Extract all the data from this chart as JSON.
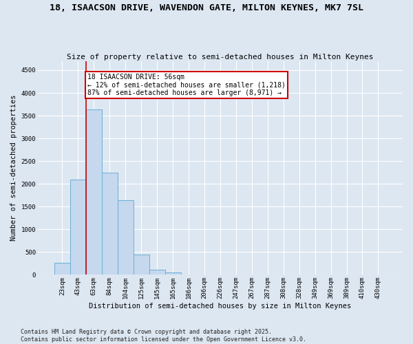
{
  "title": "18, ISAACSON DRIVE, WAVENDON GATE, MILTON KEYNES, MK7 7SL",
  "subtitle": "Size of property relative to semi-detached houses in Milton Keynes",
  "xlabel": "Distribution of semi-detached houses by size in Milton Keynes",
  "ylabel": "Number of semi-detached properties",
  "categories": [
    "23sqm",
    "43sqm",
    "63sqm",
    "84sqm",
    "104sqm",
    "125sqm",
    "145sqm",
    "165sqm",
    "186sqm",
    "206sqm",
    "226sqm",
    "247sqm",
    "267sqm",
    "287sqm",
    "308sqm",
    "328sqm",
    "349sqm",
    "369sqm",
    "389sqm",
    "410sqm",
    "430sqm"
  ],
  "values": [
    260,
    2100,
    3640,
    2250,
    1640,
    440,
    110,
    50,
    0,
    0,
    0,
    0,
    0,
    0,
    0,
    0,
    0,
    0,
    0,
    0,
    0
  ],
  "bar_color": "#c5d8ee",
  "bar_edge_color": "#6baed6",
  "vline_x": 1.5,
  "annotation_text": "18 ISAACSON DRIVE: 56sqm\n← 12% of semi-detached houses are smaller (1,218)\n87% of semi-detached houses are larger (8,971) →",
  "annotation_box_color": "#ffffff",
  "annotation_box_edge_color": "#cc0000",
  "vline_color": "#cc0000",
  "ylim": [
    0,
    4700
  ],
  "yticks": [
    0,
    500,
    1000,
    1500,
    2000,
    2500,
    3000,
    3500,
    4000,
    4500
  ],
  "background_color": "#dde7f2",
  "grid_color": "#ffffff",
  "footer_text": "Contains HM Land Registry data © Crown copyright and database right 2025.\nContains public sector information licensed under the Open Government Licence v3.0.",
  "title_fontsize": 9.5,
  "subtitle_fontsize": 8,
  "axis_label_fontsize": 7.5,
  "tick_fontsize": 6.5,
  "annotation_fontsize": 7,
  "footer_fontsize": 6
}
